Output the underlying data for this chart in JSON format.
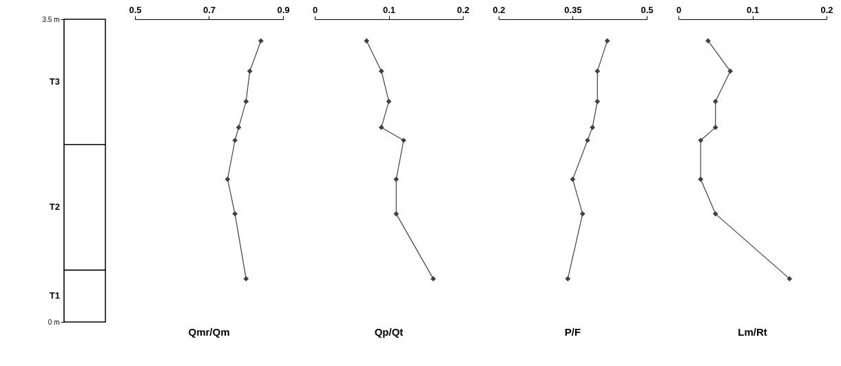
{
  "chart_data": [
    {
      "type": "bar",
      "stacked": true,
      "categories": [
        null
      ],
      "ylim": [
        0,
        3.5
      ],
      "yticks": [
        {
          "value": 0,
          "label": "0 m"
        },
        {
          "value": 3.5,
          "label": "3.5 m"
        }
      ],
      "series": [
        {
          "name": "T1",
          "color": "#ffffff",
          "values": [
            0.6
          ]
        },
        {
          "name": "T2",
          "color": "#ffffff",
          "values": [
            1.45
          ]
        },
        {
          "name": "T3",
          "color": "#ffffff",
          "values": [
            1.45
          ]
        }
      ]
    },
    {
      "type": "line",
      "xlabel": "Qmr/Qm",
      "xlim": [
        0.5,
        0.9
      ],
      "xticks": [
        0.5,
        0.7,
        0.9
      ],
      "ylim": [
        0,
        3.5
      ],
      "tick_labels": "x",
      "marker": "diamond",
      "line_style": "solid",
      "grid": false,
      "series": [
        {
          "color": "#404040",
          "x": [
            0.84,
            0.81,
            0.8,
            0.78,
            0.77,
            0.75,
            0.77,
            0.8
          ],
          "values": [
            3.25,
            2.9,
            2.55,
            2.25,
            2.1,
            1.65,
            1.25,
            0.5
          ]
        }
      ]
    },
    {
      "type": "line",
      "xlabel": "Qp/Qt",
      "xlim": [
        0,
        0.2
      ],
      "xticks": [
        0,
        0.1,
        0.2
      ],
      "ylim": [
        0,
        3.5
      ],
      "tick_labels": "x",
      "marker": "diamond",
      "line_style": "solid",
      "grid": false,
      "series": [
        {
          "color": "#404040",
          "x": [
            0.07,
            0.09,
            0.1,
            0.09,
            0.12,
            0.11,
            0.11,
            0.16
          ],
          "values": [
            3.25,
            2.9,
            2.55,
            2.25,
            2.1,
            1.65,
            1.25,
            0.5
          ]
        }
      ]
    },
    {
      "type": "line",
      "xlabel": "P/F",
      "xlim": [
        0.2,
        0.5
      ],
      "xticks": [
        0.2,
        0.35,
        0.5
      ],
      "ylim": [
        0,
        3.5
      ],
      "tick_labels": "x",
      "marker": "diamond",
      "line_style": "solid",
      "grid": false,
      "series": [
        {
          "color": "#404040",
          "x": [
            0.42,
            0.4,
            0.4,
            0.39,
            0.38,
            0.35,
            0.37,
            0.34
          ],
          "values": [
            3.25,
            2.9,
            2.55,
            2.25,
            2.1,
            1.65,
            1.25,
            0.5
          ]
        }
      ]
    },
    {
      "type": "line",
      "xlabel": "Lm/Rt",
      "xlim": [
        0,
        0.2
      ],
      "xticks": [
        0,
        0.1,
        0.2
      ],
      "ylim": [
        0,
        3.5
      ],
      "tick_labels": "x",
      "marker": "diamond",
      "line_style": "solid",
      "grid": false,
      "series": [
        {
          "color": "#404040",
          "x": [
            0.04,
            0.07,
            0.05,
            0.05,
            0.03,
            0.03,
            0.05,
            0.15
          ],
          "values": [
            3.25,
            2.9,
            2.55,
            2.25,
            2.1,
            1.65,
            1.25,
            0.5
          ]
        }
      ]
    }
  ]
}
